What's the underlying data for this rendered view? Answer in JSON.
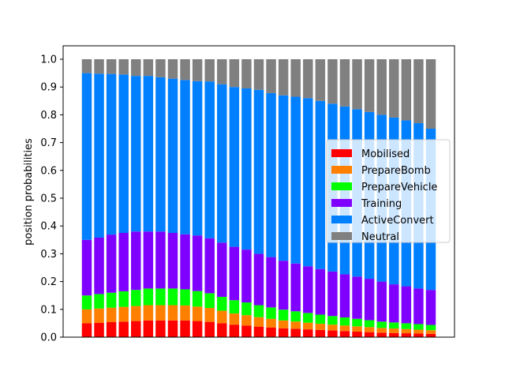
{
  "chart_data": {
    "type": "bar",
    "stacked": true,
    "title": "",
    "xlabel": "",
    "ylabel": "position probabilities",
    "ylim": [
      0,
      1.0
    ],
    "yticks": [
      0.0,
      0.1,
      0.2,
      0.3,
      0.4,
      0.5,
      0.6,
      0.7,
      0.8,
      0.9,
      1.0
    ],
    "ytick_labels": [
      "0.0",
      "0.1",
      "0.2",
      "0.3",
      "0.4",
      "0.5",
      "0.6",
      "0.7",
      "0.8",
      "0.9",
      "1.0"
    ],
    "xticks_visible": false,
    "grid": false,
    "legend_position": "center-right",
    "bar_count": 29,
    "series": [
      {
        "name": "Mobilised",
        "color": "#ff0000",
        "values": [
          0.05,
          0.052,
          0.054,
          0.056,
          0.058,
          0.06,
          0.06,
          0.06,
          0.06,
          0.058,
          0.055,
          0.05,
          0.045,
          0.042,
          0.038,
          0.035,
          0.032,
          0.03,
          0.028,
          0.026,
          0.024,
          0.022,
          0.02,
          0.018,
          0.016,
          0.015,
          0.014,
          0.013,
          0.012
        ]
      },
      {
        "name": "PrepareBomb",
        "color": "#ff8000",
        "values": [
          0.05,
          0.051,
          0.052,
          0.053,
          0.054,
          0.055,
          0.055,
          0.055,
          0.054,
          0.052,
          0.05,
          0.045,
          0.04,
          0.037,
          0.034,
          0.031,
          0.028,
          0.026,
          0.024,
          0.022,
          0.021,
          0.02,
          0.019,
          0.018,
          0.017,
          0.016,
          0.015,
          0.014,
          0.013
        ]
      },
      {
        "name": "PrepareVehicle",
        "color": "#00ff00",
        "values": [
          0.05,
          0.052,
          0.054,
          0.056,
          0.058,
          0.06,
          0.06,
          0.06,
          0.058,
          0.056,
          0.053,
          0.05,
          0.048,
          0.046,
          0.043,
          0.041,
          0.039,
          0.037,
          0.035,
          0.033,
          0.031,
          0.029,
          0.027,
          0.025,
          0.023,
          0.022,
          0.021,
          0.02,
          0.019
        ]
      },
      {
        "name": "Training",
        "color": "#8000ff",
        "values": [
          0.2,
          0.203,
          0.209,
          0.21,
          0.21,
          0.205,
          0.205,
          0.2,
          0.198,
          0.2,
          0.198,
          0.195,
          0.192,
          0.19,
          0.185,
          0.181,
          0.176,
          0.172,
          0.168,
          0.164,
          0.16,
          0.155,
          0.152,
          0.149,
          0.144,
          0.137,
          0.133,
          0.128,
          0.126
        ]
      },
      {
        "name": "ActiveConvert",
        "color": "#0080ff",
        "values": [
          0.6,
          0.59,
          0.578,
          0.57,
          0.56,
          0.56,
          0.555,
          0.555,
          0.555,
          0.555,
          0.564,
          0.57,
          0.575,
          0.58,
          0.59,
          0.59,
          0.595,
          0.6,
          0.605,
          0.605,
          0.604,
          0.604,
          0.602,
          0.6,
          0.6,
          0.6,
          0.597,
          0.595,
          0.58
        ]
      },
      {
        "name": "Neutral",
        "color": "#808080",
        "values": [
          0.05,
          0.052,
          0.053,
          0.055,
          0.06,
          0.06,
          0.065,
          0.07,
          0.075,
          0.079,
          0.08,
          0.09,
          0.1,
          0.105,
          0.11,
          0.122,
          0.13,
          0.135,
          0.14,
          0.15,
          0.16,
          0.17,
          0.18,
          0.19,
          0.2,
          0.21,
          0.22,
          0.23,
          0.25
        ]
      }
    ]
  }
}
